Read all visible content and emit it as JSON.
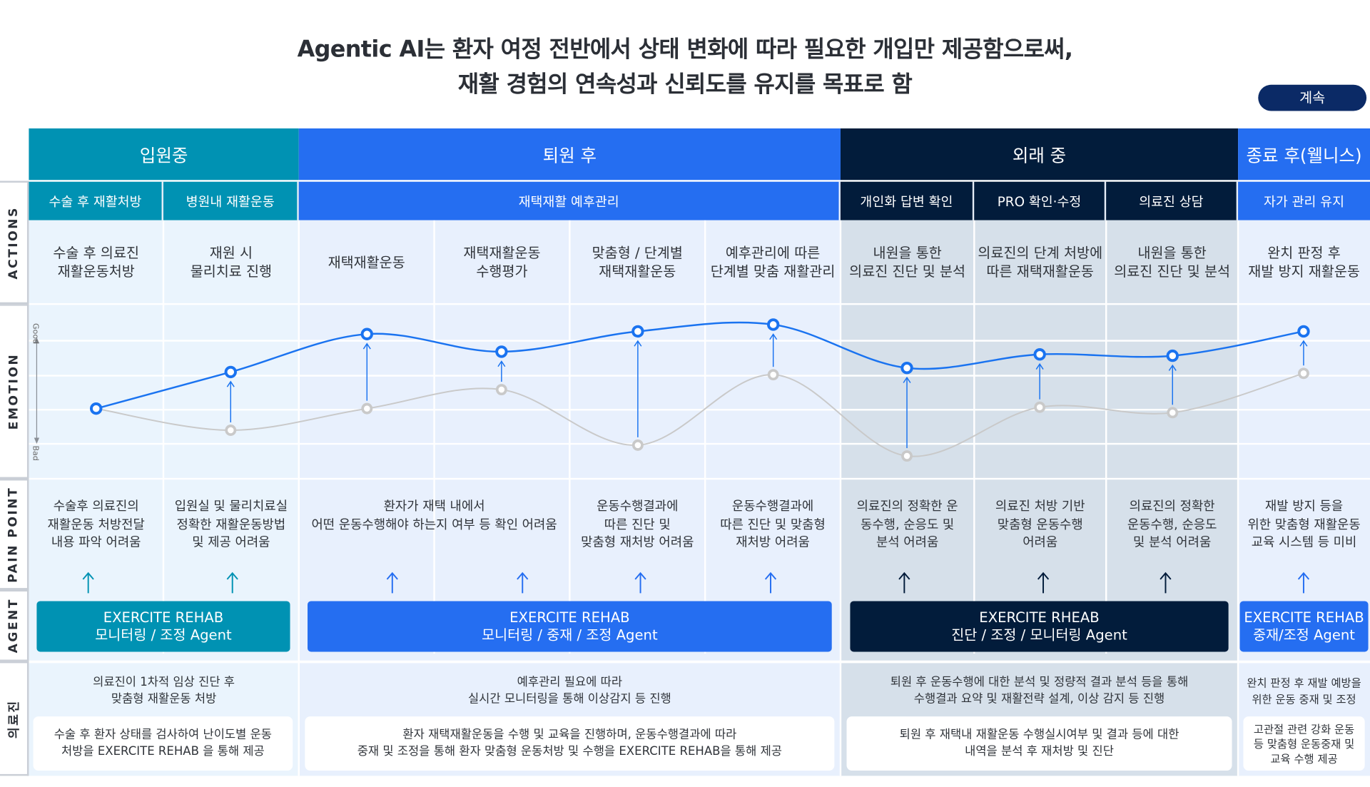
{
  "title": {
    "line1": "Agentic AI는 환자 여정 전반에서 상태 변화에 따라 필요한 개입만 제공함으로써,",
    "line2": "재활 경험의 연속성과 신뢰도를 유지를 목표로 함"
  },
  "continue_button": "계속",
  "colors": {
    "teal": "#0092b3",
    "blue": "#256ef1",
    "navy": "#021c3b",
    "good_line": "#1a73f0",
    "bad_line": "#c9c9c9"
  },
  "row_labels": {
    "actions": "ACTIONS",
    "emotion": "EMOTION",
    "pain_point": "PAIN POINT",
    "agent": "AGENT",
    "doctor": "의료진"
  },
  "sections": [
    "입원중",
    "퇴원 후",
    "외래 중",
    "종료 후(웰니스)"
  ],
  "subsections": [
    "수술 후 재활처방",
    "병원내 재활운동",
    "재택재활 예후관리",
    "개인화 답변 확인",
    "PRO 확인·수정",
    "의료진 상담",
    "자가 관리 유지"
  ],
  "actions": [
    "수술 후 의료진\n재활운동처방",
    "재원 시\n물리치료 진행",
    "재택재활운동",
    "재택재활운동\n수행평가",
    "맞춤형 / 단계별\n재택재활운동",
    "예후관리에 따른\n단계별 맞춤 재활관리",
    "내원을 통한\n의료진 진단 및 분석",
    "의료진의 단계 처방에\n따른 재택재활운동",
    "내원을 통한\n의료진 진단 및 분석",
    "완치 판정 후\n재발 방지 재활운동"
  ],
  "emotion": {
    "axis_good": "Good",
    "axis_bad": "Bad",
    "scale": [
      0,
      100
    ],
    "with_agent": [
      37,
      64,
      92,
      79,
      94,
      99,
      67,
      77,
      76,
      94
    ],
    "without_agent": [
      37,
      21,
      37,
      51,
      10,
      62,
      2,
      38,
      34,
      63
    ]
  },
  "pain_points": [
    "수술후 의료진의\n재활운동 처방전달\n내용 파악 어려움",
    "입원실 및 물리치료실\n정확한 재활운동방법\n및 제공 어려움",
    "환자가 재택 내에서\n어떤 운동수행해야 하는지 여부 등 확인 어려움",
    "운동수행결과에\n따른 진단 및\n맞춤형 재처방 어려움",
    "운동수행결과에\n따른 진단 및 맞춤형\n재처방 어려움",
    "의료진의 정확한 운\n동수행, 순응도 및\n분석 어려움",
    "의료진 처방 기반\n맞춤형 운동수행\n어려움",
    "의료진의 정확한\n운동수행, 순응도\n및 분석 어려움",
    "재발 방지 등을\n위한 맞춤형 재활운동\n교육 시스템 등 미비"
  ],
  "agents": [
    "EXERCITE REHAB\n모니터링 / 조정 Agent",
    "EXERCITE REHAB\n모니터링 / 중재 / 조정 Agent",
    "EXERCITE RHEAB\n진단 / 조정 / 모니터링 Agent",
    "EXERCITE REHAB\n중재/조정 Agent"
  ],
  "doctor_notes": [
    "의료진이 1차적 임상 진단 후\n맞춤형 재활운동 처방",
    "예후관리 필요에 따라\n실시간 모니터링을 통해 이상감지 등 진행",
    "퇴원 후 운동수행에 대한 분석 및 정량적 결과 분석 등을 통해\n수행결과 요약 및 재활전략 설계, 이상 감지 등 진행",
    "완치 판정 후 재발 예방을\n위한 운동 중재 및 조정"
  ],
  "service_boxes": [
    "수술 후 환자 상태를 검사하여 난이도별 운동\n처방을 EXERCITE REHAB 을 통해 제공",
    "환자 재택재활운동을 수행 및 교육을 진행하며, 운동수행결과에 따라\n중재 및 조정을 통해 환자 맞춤형 운동처방 및 수행을 EXERCITE REHAB을 통해 제공",
    "퇴원 후 재택내 재활운동 수행실시여부 및 결과 등에 대한\n내역을 분석 후 재처방 및 진단",
    "고관절 관련 강화 운동\n등 맞춤형 운동중재 및\n교육 수행 제공"
  ]
}
